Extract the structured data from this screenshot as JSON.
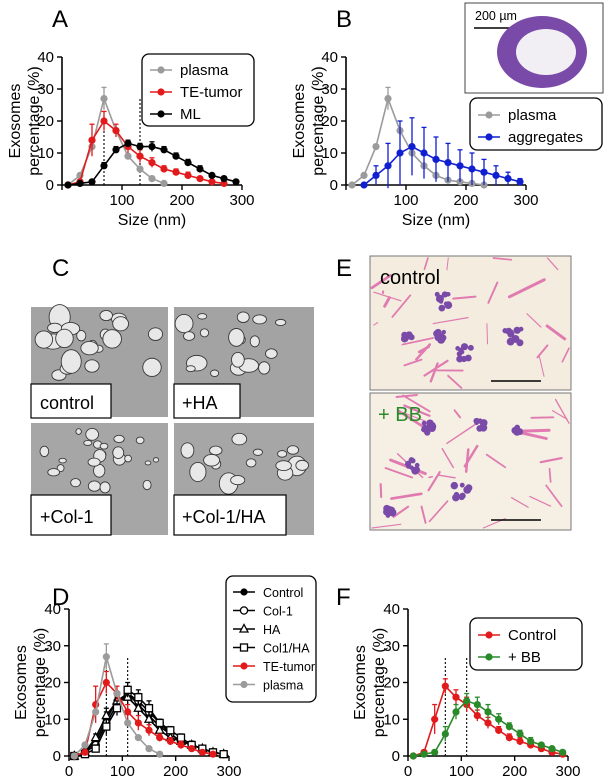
{
  "panel_labels": {
    "A": "A",
    "B": "B",
    "C": "C",
    "D": "D",
    "E": "E",
    "F": "F"
  },
  "inset": {
    "scale_label": "200 µm"
  },
  "micrographs_c": [
    "control",
    "+HA",
    "+Col-1",
    "+Col-1/HA"
  ],
  "micrographs_e": {
    "top": "control",
    "bottom": "+ BB"
  },
  "colors": {
    "plasma": "#9b9b9b",
    "te_tumor": "#e31a1c",
    "ml": "#000000",
    "aggregates": "#1020d0",
    "bb": "#2a8a2a",
    "stain": "#7a4aa8",
    "fiber": "#e07ab0"
  },
  "chart_data": [
    {
      "id": "A",
      "type": "line",
      "title": "",
      "xlabel": "Size (nm)",
      "ylabel": [
        "Exosomes",
        "percentage (%)"
      ],
      "xlim": [
        0,
        300
      ],
      "ylim": [
        0,
        40
      ],
      "xticks": [
        0,
        100,
        200,
        300
      ],
      "xtick_labels": [
        "",
        "100",
        "200",
        "300"
      ],
      "yticks": [
        0,
        10,
        20,
        30,
        40
      ],
      "ytick_labels": [
        "0",
        "10",
        "20",
        "30",
        "40"
      ],
      "reference_lines": [
        70,
        130
      ],
      "series": [
        {
          "name": "plasma",
          "color": "#9b9b9b",
          "marker": "circle",
          "x": [
            10,
            30,
            50,
            70,
            90,
            110,
            130,
            150,
            170
          ],
          "y": [
            0,
            3,
            12,
            27,
            17,
            9,
            5,
            2,
            0.5
          ],
          "err": [
            0,
            0,
            0,
            3.5,
            0,
            0,
            0,
            0,
            0
          ]
        },
        {
          "name": "TE-tumor",
          "color": "#e31a1c",
          "marker": "circle",
          "x": [
            10,
            30,
            50,
            70,
            90,
            110,
            130,
            150,
            170,
            190,
            210,
            230,
            250,
            270
          ],
          "y": [
            0,
            1,
            14,
            20,
            17,
            12,
            9,
            7,
            5,
            4,
            3,
            2,
            1,
            0.5
          ],
          "err": [
            0,
            0,
            5,
            3,
            2,
            2,
            2,
            1.5,
            1,
            1,
            1,
            0.5,
            0.5,
            0.5
          ]
        },
        {
          "name": "ML",
          "color": "#000000",
          "marker": "circle",
          "x": [
            10,
            30,
            50,
            70,
            90,
            110,
            130,
            150,
            170,
            190,
            210,
            230,
            250,
            270,
            290
          ],
          "y": [
            0,
            0.5,
            1,
            6,
            11,
            13,
            12,
            12,
            11,
            9,
            7,
            5,
            3,
            2,
            1
          ],
          "err": [
            0,
            0,
            0,
            1,
            1,
            1,
            1,
            1.5,
            1,
            1,
            1,
            1,
            0.5,
            0.5,
            0.5
          ]
        }
      ],
      "legend": [
        "plasma",
        "TE-tumor",
        "ML"
      ],
      "legend_position": "top-right"
    },
    {
      "id": "B",
      "type": "line",
      "xlabel": "Size (nm)",
      "ylabel": [
        "Exosomes",
        "percentage (%)"
      ],
      "xlim": [
        0,
        300
      ],
      "ylim": [
        0,
        40
      ],
      "xticks": [
        0,
        100,
        200,
        300
      ],
      "xtick_labels": [
        "",
        "100",
        "200",
        "300"
      ],
      "yticks": [
        0,
        10,
        20,
        30,
        40
      ],
      "ytick_labels": [
        "0",
        "10",
        "20",
        "30",
        "40"
      ],
      "series": [
        {
          "name": "plasma",
          "color": "#9b9b9b",
          "marker": "circle",
          "x": [
            10,
            30,
            50,
            70,
            90,
            110,
            130,
            150,
            170,
            190,
            210,
            230
          ],
          "y": [
            0,
            3,
            12,
            27,
            17,
            10,
            6,
            3,
            1.5,
            1,
            0.5,
            0
          ],
          "err": [
            0,
            0,
            0,
            3.5,
            0,
            0,
            0,
            0,
            0,
            0,
            0,
            0
          ]
        },
        {
          "name": "aggregates",
          "color": "#1020d0",
          "marker": "circle",
          "x": [
            30,
            50,
            70,
            90,
            110,
            130,
            150,
            170,
            190,
            210,
            230,
            250,
            270,
            290
          ],
          "y": [
            0,
            3,
            6,
            10,
            12,
            10,
            8,
            7,
            6,
            5,
            4,
            3,
            2,
            1
          ],
          "err": [
            0,
            3,
            7,
            10,
            9,
            8,
            7,
            6,
            5,
            5,
            4,
            3,
            2,
            1
          ]
        }
      ],
      "legend": [
        "plasma",
        "aggregates"
      ],
      "legend_position": "below-right"
    },
    {
      "id": "D",
      "type": "line",
      "xlabel": "Size (nm)",
      "ylabel": [
        "Exosomes",
        "percentage (%)"
      ],
      "xlim": [
        0,
        300
      ],
      "ylim": [
        0,
        40
      ],
      "xticks": [
        0,
        100,
        200,
        300
      ],
      "xtick_labels": [
        "0",
        "100",
        "200",
        "300"
      ],
      "yticks": [
        0,
        10,
        20,
        30,
        40
      ],
      "ytick_labels": [
        "0",
        "10",
        "20",
        "30",
        "40"
      ],
      "reference_lines": [
        70,
        110
      ],
      "series": [
        {
          "name": "Control",
          "color": "#000000",
          "marker": "filled",
          "x": [
            10,
            30,
            50,
            70,
            90,
            110,
            130,
            150,
            170,
            190,
            210,
            230,
            250,
            270,
            290
          ],
          "y": [
            0,
            1,
            4,
            10,
            15,
            17,
            14,
            11,
            8,
            6,
            4,
            3,
            2,
            1,
            0.5
          ],
          "err": [
            0,
            0,
            1,
            2,
            2,
            2,
            2,
            2,
            1,
            1,
            1,
            1,
            0.5,
            0.5,
            0.5
          ]
        },
        {
          "name": "Col-1",
          "color": "#000000",
          "marker": "open-circle",
          "x": [
            10,
            30,
            50,
            70,
            90,
            110,
            130,
            150,
            170,
            190,
            210,
            230,
            250,
            270,
            290
          ],
          "y": [
            0,
            1,
            3,
            9,
            14,
            17,
            15,
            12,
            9,
            6,
            4,
            3,
            2,
            1,
            0.5
          ],
          "err": [
            0,
            0,
            1,
            2,
            2,
            2,
            2,
            2,
            1,
            1,
            1,
            1,
            0.5,
            0.5,
            0.5
          ]
        },
        {
          "name": "HA",
          "color": "#000000",
          "marker": "open-triangle",
          "x": [
            10,
            30,
            50,
            70,
            90,
            110,
            130,
            150,
            170,
            190,
            210,
            230,
            250,
            270,
            290
          ],
          "y": [
            0,
            1,
            5,
            11,
            15,
            16,
            13,
            10,
            7,
            5,
            4,
            3,
            2,
            1,
            0.5
          ],
          "err": [
            0,
            0,
            1,
            2,
            2,
            2,
            2,
            2,
            1,
            1,
            1,
            1,
            0.5,
            0.5,
            0.5
          ]
        },
        {
          "name": "Col1/HA",
          "color": "#000000",
          "marker": "open-square",
          "x": [
            10,
            30,
            50,
            70,
            90,
            110,
            130,
            150,
            170,
            190,
            210,
            230,
            250,
            270,
            290
          ],
          "y": [
            0,
            0.5,
            2,
            8,
            13,
            18,
            16,
            13,
            9,
            7,
            5,
            3,
            2,
            1,
            0.5
          ],
          "err": [
            0,
            0,
            1,
            2,
            2,
            2,
            2,
            2,
            1,
            1,
            1,
            1,
            0.5,
            0.5,
            0.5
          ]
        },
        {
          "name": "TE-tumor",
          "color": "#e31a1c",
          "marker": "filled",
          "x": [
            10,
            30,
            50,
            70,
            90,
            110,
            130,
            150,
            170,
            190,
            210,
            230,
            250,
            270
          ],
          "y": [
            0,
            1,
            14,
            20,
            17,
            12,
            9,
            7,
            5,
            4,
            3,
            2,
            1,
            0.5
          ],
          "err": [
            0,
            0,
            5,
            3,
            2,
            2,
            2,
            1.5,
            1,
            1,
            1,
            0.5,
            0.5,
            0.5
          ]
        },
        {
          "name": "plasma",
          "color": "#9b9b9b",
          "marker": "filled",
          "x": [
            10,
            30,
            50,
            70,
            90,
            110,
            130,
            150,
            170
          ],
          "y": [
            0,
            3,
            12,
            27,
            17,
            9,
            5,
            2,
            0.5
          ],
          "err": [
            0,
            0,
            0,
            3.5,
            0,
            0,
            0,
            0,
            0
          ]
        }
      ],
      "legend": [
        "Control",
        "Col-1",
        "HA",
        "Col1/HA",
        "TE-tumor",
        "plasma"
      ],
      "legend_position": "top-right"
    },
    {
      "id": "F",
      "type": "line",
      "xlabel": "Size (nm)",
      "ylabel": [
        "Exosomes",
        "percentage (%)"
      ],
      "xlim": [
        0,
        300
      ],
      "ylim": [
        0,
        40
      ],
      "xticks": [
        0,
        100,
        200,
        300
      ],
      "xtick_labels": [
        "0",
        "100",
        "200",
        "300"
      ],
      "yticks": [
        0,
        10,
        20,
        30,
        40
      ],
      "ytick_labels": [
        "0",
        "10",
        "20",
        "30",
        "40"
      ],
      "reference_lines": [
        70,
        110
      ],
      "series": [
        {
          "name": "Control",
          "color": "#e31a1c",
          "marker": "circle",
          "x": [
            10,
            30,
            50,
            70,
            90,
            110,
            130,
            150,
            170,
            190,
            210,
            230,
            250,
            270,
            290
          ],
          "y": [
            0,
            1,
            10,
            19,
            16,
            14,
            11,
            9,
            7,
            5,
            4,
            3,
            2,
            1,
            0.5
          ],
          "err": [
            0,
            0,
            4,
            2,
            2,
            2,
            1.5,
            1.5,
            1,
            1,
            1,
            0.5,
            0.5,
            0.5,
            0.5
          ]
        },
        {
          "name": "+ BB",
          "color": "#2a8a2a",
          "marker": "circle",
          "x": [
            10,
            30,
            50,
            70,
            90,
            110,
            130,
            150,
            170,
            190,
            210,
            230,
            250,
            270,
            290
          ],
          "y": [
            0,
            0.5,
            1,
            6,
            12,
            15,
            14,
            12,
            10,
            8,
            6,
            4,
            3,
            2,
            1
          ],
          "err": [
            0,
            0,
            0.5,
            2,
            2,
            2,
            2,
            2,
            1.5,
            1,
            1,
            1,
            0.5,
            0.5,
            0.5
          ]
        }
      ],
      "legend": [
        "Control",
        "+ BB"
      ],
      "legend_position": "right"
    }
  ]
}
